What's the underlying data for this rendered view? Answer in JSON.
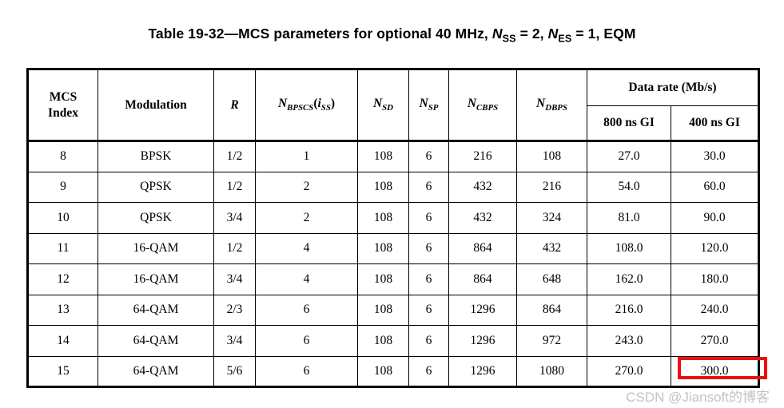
{
  "page_title_segments": [
    {
      "t": "Table 19-32—MCS parameters for optional 40 MHz, "
    },
    {
      "t": "N",
      "s": "i"
    },
    {
      "t": "SS",
      "s": "sub"
    },
    {
      "t": " = 2, "
    },
    {
      "t": "N",
      "s": "i"
    },
    {
      "t": "ES",
      "s": "sub"
    },
    {
      "t": " = 1, EQM"
    }
  ],
  "table": {
    "headers": [
      {
        "name": "mcs-index",
        "segments": [
          {
            "t": "MCS"
          },
          {
            "s": "br"
          },
          {
            "t": "Index"
          }
        ]
      },
      {
        "name": "modulation",
        "segments": [
          {
            "t": "Modulation"
          }
        ]
      },
      {
        "name": "r",
        "segments": [
          {
            "t": "R",
            "s": "i"
          }
        ]
      },
      {
        "name": "n-bpscs-iss",
        "segments": [
          {
            "t": "N",
            "s": "i"
          },
          {
            "t": "BPSCS",
            "s": "sub"
          },
          {
            "t": "("
          },
          {
            "t": "i",
            "s": "i"
          },
          {
            "t": "SS",
            "s": "sub"
          },
          {
            "t": ")"
          }
        ]
      },
      {
        "name": "n-sd",
        "segments": [
          {
            "t": "N",
            "s": "i"
          },
          {
            "t": "SD",
            "s": "sub"
          }
        ]
      },
      {
        "name": "n-sp",
        "segments": [
          {
            "t": "N",
            "s": "i"
          },
          {
            "t": "SP",
            "s": "sub"
          }
        ]
      },
      {
        "name": "n-cbps",
        "segments": [
          {
            "t": "N",
            "s": "i"
          },
          {
            "t": "CBPS",
            "s": "sub"
          }
        ]
      },
      {
        "name": "n-dbps",
        "segments": [
          {
            "t": "N",
            "s": "i"
          },
          {
            "t": "DBPS",
            "s": "sub"
          }
        ]
      }
    ],
    "group_header": {
      "label": "Data rate (Mb/s)",
      "sub": [
        "800 ns GI",
        "400 ns GI"
      ]
    },
    "rows": [
      [
        "8",
        "BPSK",
        "1/2",
        "1",
        "108",
        "6",
        "216",
        "108",
        "27.0",
        "30.0"
      ],
      [
        "9",
        "QPSK",
        "1/2",
        "2",
        "108",
        "6",
        "432",
        "216",
        "54.0",
        "60.0"
      ],
      [
        "10",
        "QPSK",
        "3/4",
        "2",
        "108",
        "6",
        "432",
        "324",
        "81.0",
        "90.0"
      ],
      [
        "11",
        "16-QAM",
        "1/2",
        "4",
        "108",
        "6",
        "864",
        "432",
        "108.0",
        "120.0"
      ],
      [
        "12",
        "16-QAM",
        "3/4",
        "4",
        "108",
        "6",
        "864",
        "648",
        "162.0",
        "180.0"
      ],
      [
        "13",
        "64-QAM",
        "2/3",
        "6",
        "108",
        "6",
        "1296",
        "864",
        "216.0",
        "240.0"
      ],
      [
        "14",
        "64-QAM",
        "3/4",
        "6",
        "108",
        "6",
        "1296",
        "972",
        "243.0",
        "270.0"
      ],
      [
        "15",
        "64-QAM",
        "5/6",
        "6",
        "108",
        "6",
        "1296",
        "1080",
        "270.0",
        "300.0"
      ]
    ],
    "highlight": {
      "row_index": 7,
      "column_index": 9,
      "highlighted_value": "300.0",
      "color": "#ee0e0e"
    }
  },
  "watermark": {
    "text": "CSDN @Jiansoft的博客",
    "color": "#b9b9b9"
  },
  "colors": {
    "text": "#000000",
    "table_border": "#000000",
    "highlight_red": "#ee0e0e",
    "watermark_gray": "#b9b9b9",
    "background": "#ffffff"
  }
}
